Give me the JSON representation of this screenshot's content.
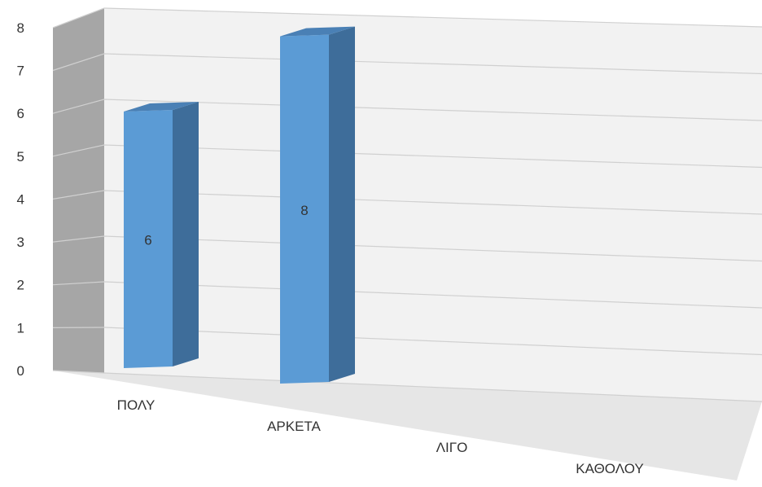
{
  "chart_data": {
    "type": "bar",
    "subtype": "3d-column",
    "title": "",
    "xlabel": "",
    "ylabel": "",
    "categories": [
      "ΠΟΛΥ",
      "ΑΡΚΕΤΑ",
      "ΛΙΓΟ",
      "ΚΑΘΟΛΟΥ"
    ],
    "values": [
      6,
      8,
      0,
      0
    ],
    "data_labels": [
      "6",
      "8",
      "",
      ""
    ],
    "ylim": [
      0,
      8
    ],
    "yticks": [
      0,
      1,
      2,
      3,
      4,
      5,
      6,
      7,
      8
    ],
    "grid": true,
    "legend": "none",
    "colors": {
      "bar_front": "#5B9BD5",
      "bar_side": "#3E6D9A",
      "bar_top": "#4A80B5",
      "back_wall": "#F2F2F2",
      "side_wall": "#A6A6A6",
      "floor": "#E6E6E6",
      "gridline": "#D0D0D0",
      "text": "#333333"
    }
  }
}
